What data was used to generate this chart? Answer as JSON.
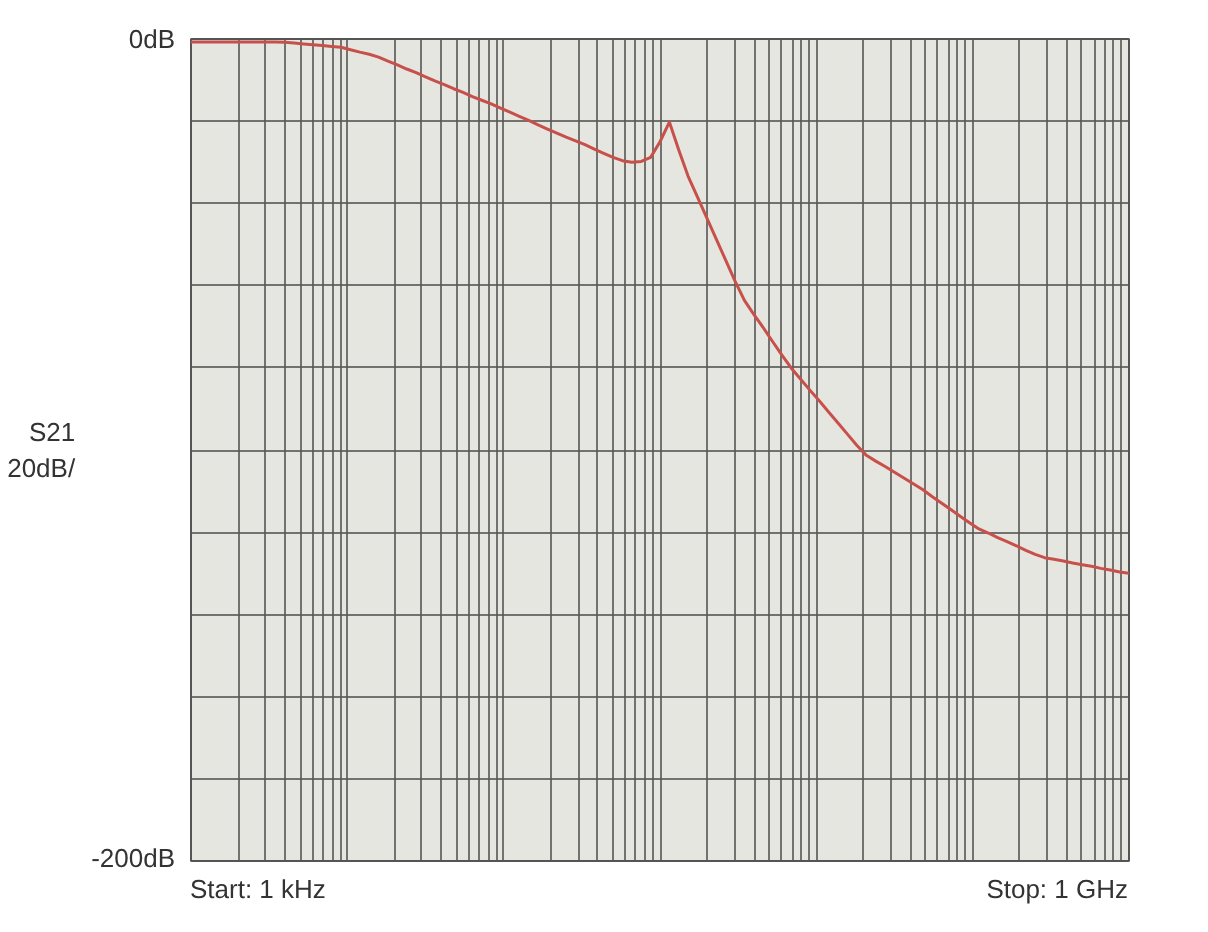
{
  "chart_data": {
    "type": "line",
    "ylabel": "S21\n20dB/",
    "annotations": [
      "Start: 1 kHz",
      "Stop: 1 GHz"
    ],
    "grid": true,
    "ylim": [
      -200,
      0
    ],
    "categories": [
      null,
      null,
      null,
      null,
      null,
      null,
      null,
      null,
      null,
      null,
      null,
      null,
      null,
      null,
      null,
      null,
      null,
      null,
      null,
      null,
      null,
      null,
      null,
      null,
      null,
      null,
      null,
      null,
      null,
      null,
      null,
      null,
      null,
      null,
      null,
      null,
      null,
      null,
      null,
      null,
      null,
      null,
      null,
      null,
      null,
      null,
      null,
      null,
      null,
      null,
      null,
      null,
      null,
      null,
      null,
      null,
      null,
      null,
      null,
      null,
      null,
      null,
      null,
      null,
      null,
      null,
      null,
      null,
      null,
      null,
      null,
      null,
      null,
      null,
      null,
      null,
      null,
      null,
      null,
      null,
      null,
      null,
      null,
      null,
      null,
      null,
      null,
      null,
      null,
      null,
      null,
      null,
      null,
      null,
      null,
      null,
      null,
      null,
      null,
      null,
      null
    ],
    "yticks": [
      {
        "value": -200,
        "label": "-200dB"
      },
      {
        "value": -180,
        "label": null
      },
      {
        "value": -160,
        "label": null
      },
      {
        "value": -140,
        "label": null
      },
      {
        "value": -120,
        "label": null
      },
      {
        "value": -100,
        "label": null
      },
      {
        "value": -80,
        "label": null
      },
      {
        "value": -60,
        "label": null
      },
      {
        "value": -40,
        "label": null
      },
      {
        "value": -20,
        "label": null
      },
      {
        "value": 0,
        "label": "0dB"
      }
    ],
    "series": [
      {
        "color": "#c8504a",
        "line_style": "solid",
        "values": [
          -0.7,
          -0.7,
          -0.7,
          -0.7,
          -0.7,
          -0.7,
          -0.7,
          -0.7,
          -0.7,
          -0.7,
          -0.8,
          -1.0,
          -1.2,
          -1.4,
          -1.6,
          -1.8,
          -2.0,
          -2.6,
          -3.2,
          -3.7,
          -4.4,
          -5.4,
          -6.3,
          -7.3,
          -8.2,
          -9.2,
          -10.2,
          -11.1,
          -12.1,
          -13.0,
          -14.0,
          -14.9,
          -15.8,
          -16.8,
          -17.8,
          -18.8,
          -19.8,
          -20.9,
          -21.9,
          -22.9,
          -23.9,
          -24.8,
          -25.7,
          -26.8,
          -27.8,
          -28.8,
          -29.6,
          -30,
          -29.8,
          -28.8,
          -25,
          -20.2,
          -27,
          -33.4,
          -38.5,
          -43.6,
          -48.7,
          -53.8,
          -58.9,
          -63.6,
          -67,
          -70.2,
          -73.6,
          -76.9,
          -80.1,
          -82.8,
          -85.5,
          -88.1,
          -90.8,
          -93.5,
          -96.2,
          -98.9,
          -101.3,
          -102.7,
          -104,
          -105.4,
          -106.8,
          -108.2,
          -109.6,
          -111.3,
          -112.9,
          -114.5,
          -116.1,
          -117.7,
          -119.2,
          -120.2,
          -121.3,
          -122.3,
          -123.3,
          -124.4,
          -125.4,
          -126.2,
          -126.6,
          -127,
          -127.5,
          -127.9,
          -128.3,
          -128.8,
          -129.2,
          -129.7,
          -130
        ]
      }
    ]
  }
}
